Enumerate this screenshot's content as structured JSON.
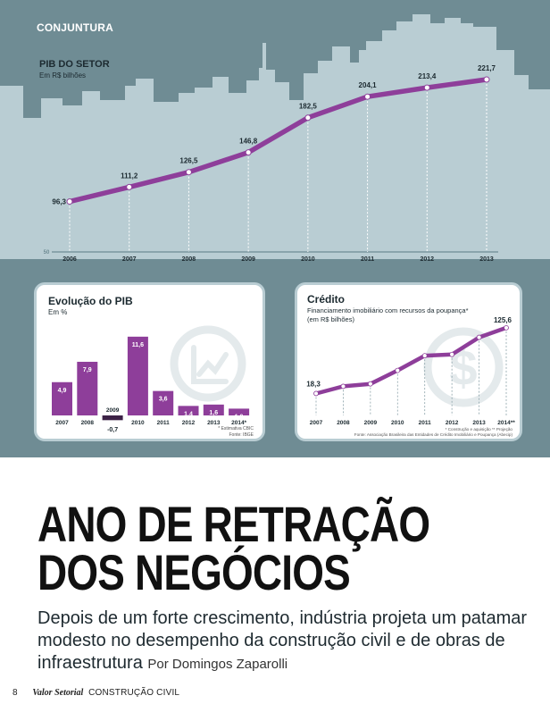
{
  "section_label": "CONJUNTURA",
  "colors": {
    "purple": "#8e3e9a",
    "dark_purple": "#3c2246",
    "bg_top": "#6f8c94",
    "skyline": "#b9cdd3",
    "panel_border": "#b9cdd3"
  },
  "chart_data": [
    {
      "type": "line",
      "title": "PIB DO SETOR",
      "subtitle": "Em R$ bilhões",
      "categories": [
        "2006",
        "2007",
        "2008",
        "2009",
        "2010",
        "2011",
        "2012",
        "2013"
      ],
      "values": [
        96.3,
        111.2,
        126.5,
        146.8,
        182.5,
        204.1,
        213.4,
        221.7
      ],
      "value_labels": [
        "96,3",
        "111,2",
        "126,5",
        "146,8",
        "182,5",
        "204,1",
        "213,4",
        "221,7"
      ],
      "axis_label": "50",
      "ylim": [
        50,
        230
      ]
    },
    {
      "type": "bar",
      "title": "Evolução do PIB",
      "subtitle": "Em %",
      "categories": [
        "2007",
        "2008",
        "2009",
        "2010",
        "2011",
        "2012",
        "2013",
        "2014*"
      ],
      "values": [
        4.9,
        7.9,
        -0.7,
        11.6,
        3.6,
        1.4,
        1.6,
        1.0
      ],
      "value_labels": [
        "4,9",
        "7,9",
        "-0,7",
        "11,6",
        "3,6",
        "1,4",
        "1,6",
        "1,0"
      ],
      "notes": [
        "* Estimativa CBIC",
        "Fonte: IBGE"
      ],
      "ylim": [
        -0.7,
        12
      ]
    },
    {
      "type": "line",
      "title": "Crédito",
      "subtitle_lines": [
        "Financiamento imobiliário com recursos da poupança*",
        "(em R$ bilhões)"
      ],
      "categories": [
        "2007",
        "2008",
        "2009",
        "2010",
        "2011",
        "2012",
        "2013",
        "2014**"
      ],
      "values": [
        18.3,
        30.0,
        34.0,
        56.0,
        80.0,
        82.0,
        110.0,
        125.6
      ],
      "first_label": "18,3",
      "last_label": "125,6",
      "notes": [
        "* Construção e aquisição  ** Projeção",
        "Fonte: Associação Brasileira das Entidades de Crédito Imobiliário e Poupança (Abecip)"
      ],
      "ylim": [
        0,
        140
      ]
    }
  ],
  "headline_lines": [
    "ANO DE RETRAÇÃO",
    "DOS NEGÓCIOS"
  ],
  "subhead": "Depois de um forte crescimento, indústria projeta um patamar modesto no desempenho da construção civil e de obras de infraestrutura",
  "byline": "Por Domingos Zaparolli",
  "footer": {
    "page_number": "8",
    "magazine": "Valor Setorial",
    "section": "CONSTRUÇÃO CIVIL"
  }
}
